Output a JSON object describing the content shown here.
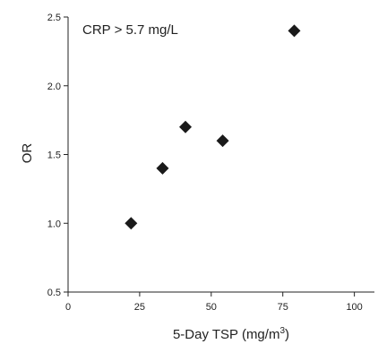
{
  "chart_data": {
    "type": "scatter",
    "annotation": "CRP > 5.7 mg/L",
    "xlabel": "5-Day TSP (mg/m",
    "xlabel_sup": "3",
    "xlabel_end": ")",
    "ylabel": "OR",
    "xlim": [
      0,
      107
    ],
    "ylim": [
      0.5,
      2.5
    ],
    "xticks": [
      0,
      25,
      50,
      75,
      100
    ],
    "yticks": [
      0.5,
      1.0,
      1.5,
      2.0,
      2.5
    ],
    "xtick_labels": [
      "0",
      "25",
      "50",
      "75",
      "100"
    ],
    "ytick_labels": [
      "0.5",
      "1.0",
      "1.5",
      "2.0",
      "2.5"
    ],
    "points": [
      {
        "x": 22,
        "y": 1.0
      },
      {
        "x": 33,
        "y": 1.4
      },
      {
        "x": 41,
        "y": 1.7
      },
      {
        "x": 54,
        "y": 1.6
      },
      {
        "x": 79,
        "y": 2.4
      }
    ],
    "marker": "diamond",
    "marker_color": "#1a1a1a",
    "grid": false
  }
}
